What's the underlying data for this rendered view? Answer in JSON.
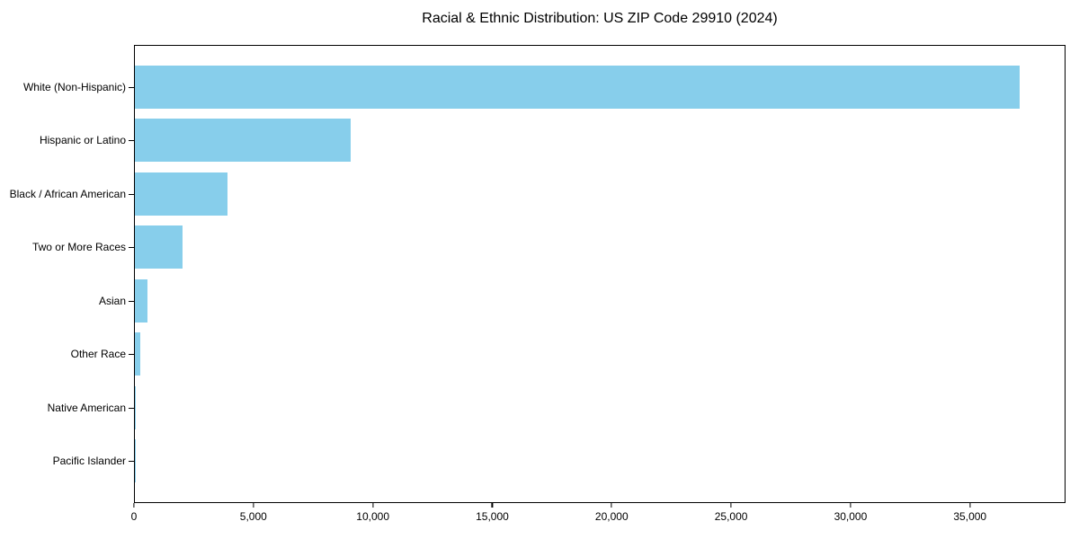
{
  "chart_data": {
    "type": "bar",
    "orientation": "horizontal",
    "title": "Racial & Ethnic Distribution: US ZIP Code 29910 (2024)",
    "categories": [
      "White (Non-Hispanic)",
      "Hispanic or Latino",
      "Black / African American",
      "Two or More Races",
      "Asian",
      "Other Race",
      "Native American",
      "Pacific Islander"
    ],
    "values": [
      37130,
      9060,
      3900,
      2000,
      540,
      210,
      30,
      10
    ],
    "xlabel": "",
    "ylabel": "",
    "xlim": [
      0,
      39000
    ],
    "x_ticks": [
      0,
      5000,
      10000,
      15000,
      20000,
      25000,
      30000,
      35000
    ],
    "x_tick_labels": [
      "0",
      "5,000",
      "10,000",
      "15,000",
      "20,000",
      "25,000",
      "30,000",
      "35,000"
    ],
    "bar_color": "#87CEEB",
    "axis_color": "#000000",
    "background_color": "#ffffff",
    "grid": false,
    "legend": null
  }
}
